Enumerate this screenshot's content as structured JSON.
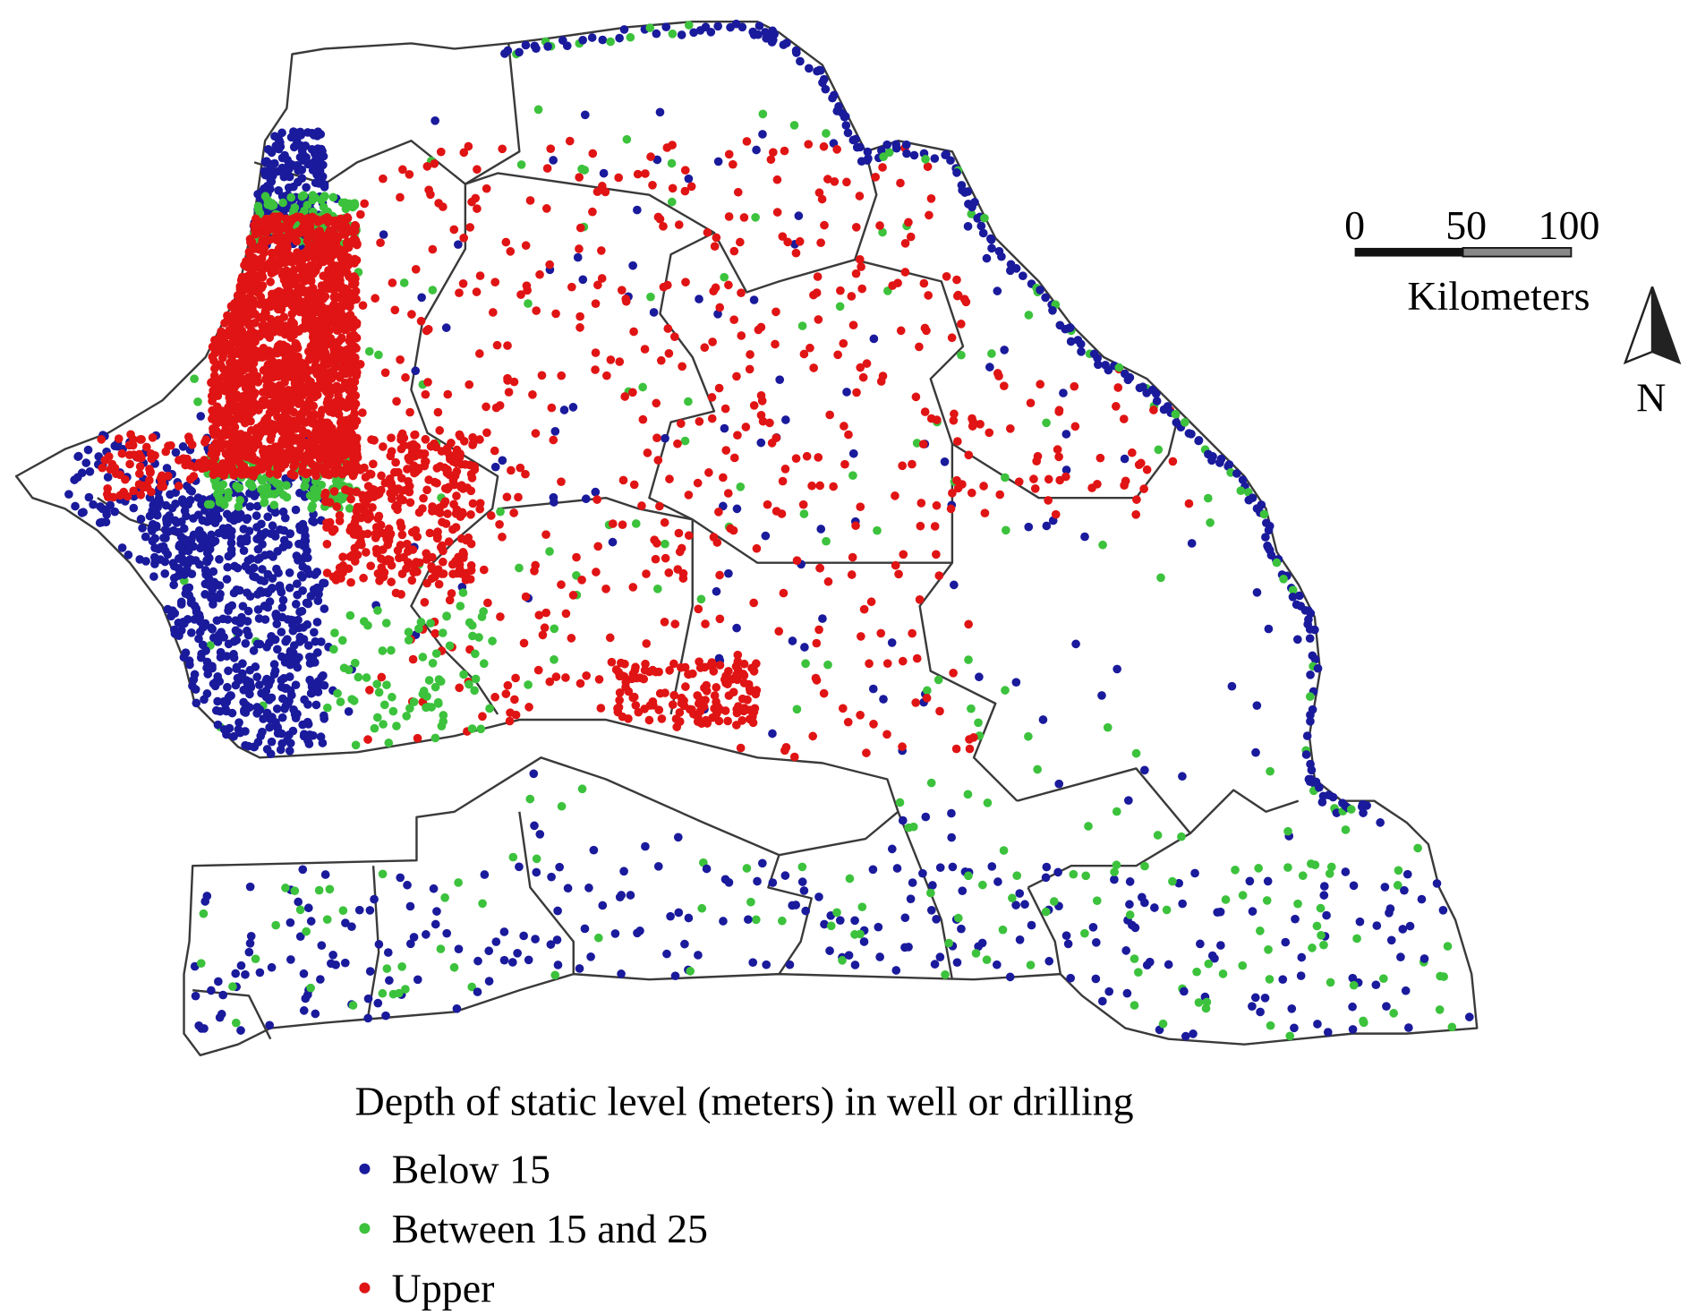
{
  "scale_bar": {
    "labels": [
      "0",
      "50",
      "100"
    ],
    "unit": "Kilometers"
  },
  "north_arrow": {
    "label": "N"
  },
  "legend": {
    "title": "Depth of static level (meters) in well or drilling",
    "items": [
      {
        "label": "Below 15",
        "color": "#1a1a9c"
      },
      {
        "label": "Between 15 and 25",
        "color": "#3cc23c"
      },
      {
        "label": "Upper",
        "color": "#e01414"
      }
    ]
  }
}
